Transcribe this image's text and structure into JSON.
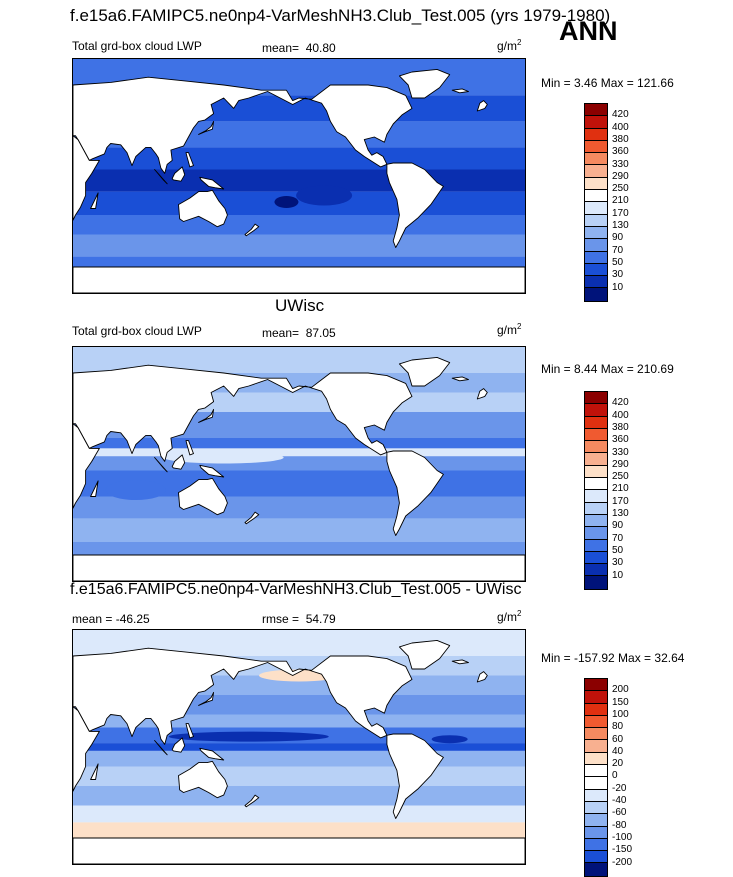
{
  "header": {
    "title": "f.e15a6.FAMIPC5.ne0np4-VarMeshNH3.Club_Test.005 (yrs 1979-1980)",
    "season": "ANN"
  },
  "panels": [
    {
      "id": "test",
      "var_label": "Total grd-box cloud LWP",
      "mean_label": "mean=",
      "mean_value": "40.80",
      "units_base": "g/m",
      "units_exp": "2",
      "minmax": "Min =   3.46 Max = 121.66",
      "ticks": [
        "420",
        "400",
        "380",
        "360",
        "330",
        "290",
        "250",
        "210",
        "170",
        "130",
        "90",
        "70",
        "50",
        "30",
        "10"
      ]
    },
    {
      "id": "control",
      "title": "UWisc",
      "var_label": "Total grd-box cloud LWP",
      "mean_label": "mean=",
      "mean_value": "87.05",
      "units_base": "g/m",
      "units_exp": "2",
      "minmax": "Min =   8.44 Max = 210.69",
      "ticks": [
        "420",
        "400",
        "380",
        "360",
        "330",
        "290",
        "250",
        "210",
        "170",
        "130",
        "90",
        "70",
        "50",
        "30",
        "10"
      ]
    },
    {
      "id": "diff",
      "title": "f.e15a6.FAMIPC5.ne0np4-VarMeshNH3.Club_Test.005 - UWisc",
      "mean_label": "mean =",
      "mean_value": "-46.25",
      "rmse_label": "rmse =",
      "rmse_value": "54.79",
      "units_base": "g/m",
      "units_exp": "2",
      "minmax": "Min = -157.92 Max =  32.64",
      "ticks": [
        "200",
        "150",
        "100",
        "80",
        "60",
        "40",
        "20",
        "0",
        "-20",
        "-40",
        "-60",
        "-80",
        "-100",
        "-150",
        "-200"
      ]
    }
  ],
  "chart_data": [
    {
      "type": "heatmap",
      "title": "Total grd-box cloud LWP",
      "units": "g/m2",
      "mean": 40.8,
      "min": 3.46,
      "max": 121.66,
      "levels": [
        10,
        30,
        50,
        70,
        90,
        130,
        170,
        210,
        250,
        290,
        330,
        360,
        380,
        400,
        420
      ]
    },
    {
      "type": "heatmap",
      "title": "UWisc Total grd-box cloud LWP",
      "units": "g/m2",
      "mean": 87.05,
      "min": 8.44,
      "max": 210.69,
      "levels": [
        10,
        30,
        50,
        70,
        90,
        130,
        170,
        210,
        250,
        290,
        330,
        360,
        380,
        400,
        420
      ]
    },
    {
      "type": "heatmap",
      "title": "f.e15a6.FAMIPC5.ne0np4-VarMeshNH3.Club_Test.005 - UWisc",
      "units": "g/m2",
      "mean": -46.25,
      "rmse": 54.79,
      "min": -157.92,
      "max": 32.64,
      "levels": [
        -200,
        -150,
        -100,
        -80,
        -60,
        -40,
        -20,
        0,
        20,
        40,
        60,
        80,
        100,
        150,
        200
      ]
    }
  ],
  "colors": {
    "abs_scale": [
      "#8b0000",
      "#c0120a",
      "#e03010",
      "#f05a30",
      "#f58a60",
      "#f8b090",
      "#fde0c8",
      "#ffffff",
      "#dce9fb",
      "#b8d1f6",
      "#8fb3f0",
      "#6a95ea",
      "#3f72e5",
      "#1a4fd6",
      "#0a2fb0",
      "#00137a"
    ],
    "diff_scale": [
      "#8b0000",
      "#c0120a",
      "#e03010",
      "#f05a30",
      "#f58a60",
      "#f8b090",
      "#fde0c8",
      "#ffffff",
      "#ffffff",
      "#dce9fb",
      "#b8d1f6",
      "#8fb3f0",
      "#6a95ea",
      "#3f72e5",
      "#1a4fd6",
      "#00137a"
    ],
    "land": "#ffffff"
  }
}
